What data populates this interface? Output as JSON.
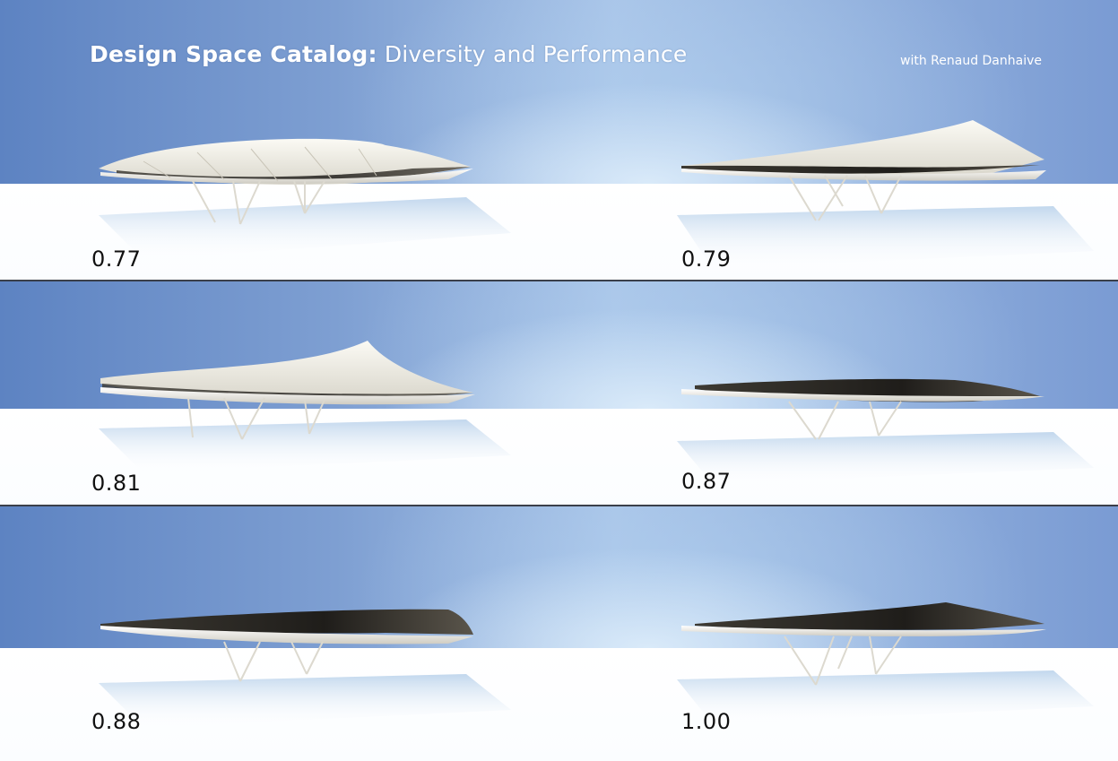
{
  "header": {
    "title_bold": "Design Space Catalog:",
    "title_rest": " Diversity and Performance",
    "credit": "with Renaud Danhaive"
  },
  "designs": [
    {
      "score": "0.77",
      "shape": "peaked-center"
    },
    {
      "score": "0.79",
      "shape": "peaked-right"
    },
    {
      "score": "0.81",
      "shape": "peaked-right-high"
    },
    {
      "score": "0.87",
      "shape": "flat-curled-right"
    },
    {
      "score": "0.88",
      "shape": "flat-lens"
    },
    {
      "score": "1.00",
      "shape": "flat-slight-peak"
    }
  ],
  "colors": {
    "sky_left": "#5d83c2",
    "sky_center": "#a8c4e8",
    "sky_right": "#7a9bd3",
    "ground": "#ffffff",
    "divider": "#3a3f4a",
    "shell_light": "#f4f2ea",
    "shell_dark": "#2c2a26"
  }
}
